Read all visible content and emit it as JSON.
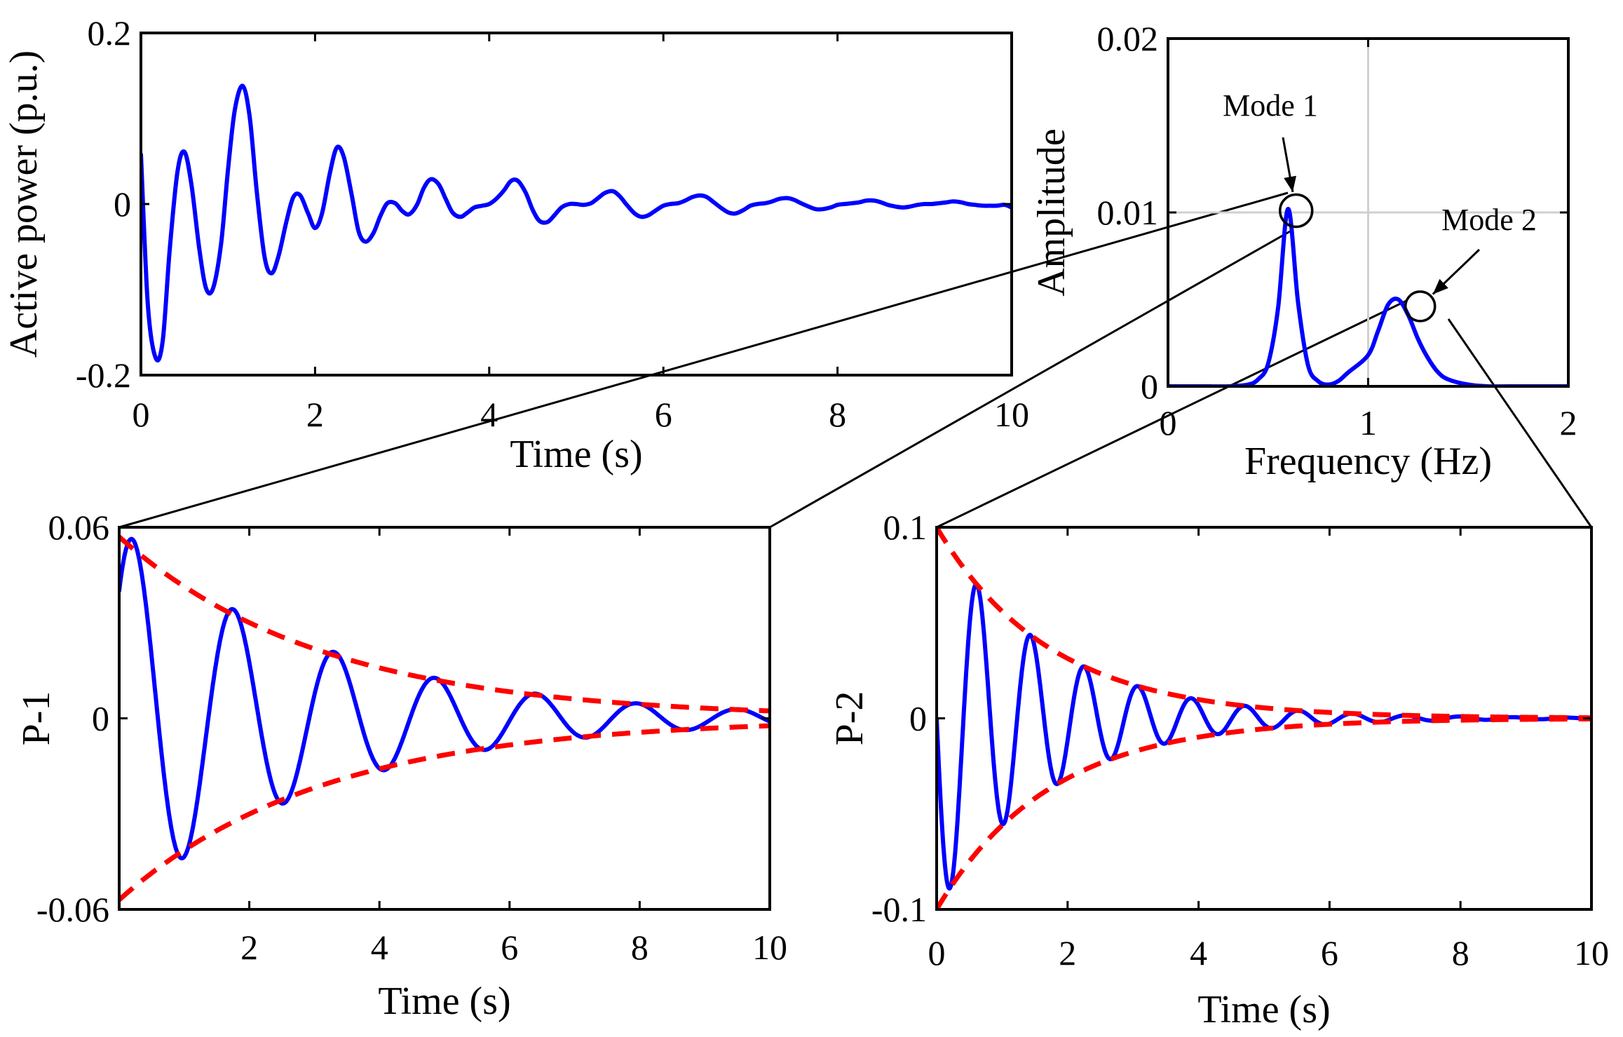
{
  "chart_data": [
    {
      "id": "main",
      "type": "line",
      "title": "",
      "xlabel": "Time (s)",
      "ylabel": "Active power (p.u.)",
      "xlim": [
        0,
        10
      ],
      "ylim": [
        -0.2,
        0.2
      ],
      "xticks": [
        0,
        2,
        4,
        6,
        8,
        10
      ],
      "xtick_labels": [
        "0",
        "2",
        "4",
        "6",
        "8",
        "10"
      ],
      "yticks": [
        -0.2,
        0,
        0.2
      ],
      "ytick_labels": [
        "-0.2",
        "0",
        "0.2"
      ],
      "grid": false,
      "series": [
        {
          "name": "Active power",
          "color": "#0000ff",
          "style": "solid",
          "x": [
            0,
            0.08,
            0.17,
            0.25,
            0.33,
            0.42,
            0.5,
            0.58,
            0.67,
            0.75,
            0.83,
            0.92,
            1.0,
            1.08,
            1.17,
            1.25,
            1.33,
            1.42,
            1.5,
            1.58,
            1.67,
            1.75,
            1.83,
            1.92,
            2.0,
            2.08,
            2.17,
            2.25,
            2.33,
            2.42,
            2.5,
            2.58,
            2.67,
            2.75,
            2.83,
            2.92,
            3.0,
            3.08,
            3.17,
            3.25,
            3.33,
            3.42,
            3.5,
            3.58,
            3.67,
            3.75,
            3.83,
            3.92,
            4.0,
            4.08,
            4.17,
            4.25,
            4.33,
            4.42,
            4.5,
            4.58,
            4.67,
            4.75,
            4.83,
            4.92,
            5.0,
            5.08,
            5.17,
            5.25,
            5.33,
            5.42,
            5.5,
            5.58,
            5.67,
            5.75,
            5.83,
            5.92,
            6.0,
            6.08,
            6.17,
            6.25,
            6.33,
            6.42,
            6.5,
            6.58,
            6.67,
            6.75,
            6.83,
            6.92,
            7.0,
            7.08,
            7.17,
            7.25,
            7.33,
            7.42,
            7.5,
            7.58,
            7.67,
            7.75,
            7.83,
            7.92,
            8.0,
            8.08,
            8.17,
            8.25,
            8.33,
            8.42,
            8.5,
            8.58,
            8.67,
            8.75,
            8.83,
            8.92,
            9.0,
            9.08,
            9.17,
            9.25,
            9.33,
            9.42,
            9.5,
            9.58,
            9.67,
            9.75,
            9.83,
            9.92,
            10.0
          ],
          "y": [
            0.058,
            -0.118,
            -0.18,
            -0.16,
            -0.054,
            0.038,
            0.061,
            0.023,
            -0.052,
            -0.099,
            -0.098,
            -0.047,
            0.04,
            0.111,
            0.138,
            0.101,
            0.015,
            -0.062,
            -0.081,
            -0.061,
            -0.021,
            0.008,
            0.01,
            -0.011,
            -0.028,
            -0.011,
            0.036,
            0.066,
            0.055,
            0.011,
            -0.032,
            -0.044,
            -0.034,
            -0.014,
            0.001,
            0.001,
            -0.008,
            -0.012,
            -0.001,
            0.019,
            0.029,
            0.023,
            0.006,
            -0.01,
            -0.015,
            -0.01,
            -0.004,
            -0.002,
            0.0,
            0.006,
            0.016,
            0.027,
            0.027,
            0.013,
            -0.007,
            -0.02,
            -0.021,
            -0.013,
            -0.004,
            0.0,
            0.0,
            -0.001,
            0.001,
            0.007,
            0.013,
            0.015,
            0.009,
            -0.001,
            -0.011,
            -0.015,
            -0.013,
            -0.007,
            -0.002,
            0.0,
            0.001,
            0.004,
            0.008,
            0.01,
            0.008,
            0.002,
            -0.005,
            -0.01,
            -0.011,
            -0.007,
            -0.002,
            0.0,
            0.001,
            0.003,
            0.006,
            0.007,
            0.005,
            0.001,
            -0.003,
            -0.006,
            -0.006,
            -0.004,
            -0.001,
            0.0,
            0.001,
            0.002,
            0.004,
            0.004,
            0.002,
            -0.001,
            -0.003,
            -0.004,
            -0.003,
            -0.001,
            0.0,
            0.0,
            0.001,
            0.002,
            0.003,
            0.002,
            0.0,
            -0.001,
            -0.002,
            -0.002,
            -0.002,
            -0.001,
            -0.004
          ]
        }
      ]
    },
    {
      "id": "spectrum",
      "type": "line",
      "title": "",
      "xlabel": "Frequency (Hz)",
      "ylabel": "Amplitude",
      "xlim": [
        0,
        2
      ],
      "ylim": [
        0,
        0.02
      ],
      "xticks": [
        0,
        1,
        2
      ],
      "xtick_labels": [
        "0",
        "1",
        "2"
      ],
      "yticks": [
        0,
        0.01,
        0.02
      ],
      "ytick_labels": [
        "0",
        "0.01",
        "0.02"
      ],
      "grid": true,
      "series": [
        {
          "name": "Amplitude spectrum",
          "color": "#0000ff",
          "style": "solid",
          "x": [
            0,
            0.1,
            0.2,
            0.3,
            0.4,
            0.45,
            0.5,
            0.55,
            0.6,
            0.65,
            0.7,
            0.75,
            0.8,
            0.85,
            0.9,
            1.0,
            1.05,
            1.1,
            1.15,
            1.2,
            1.25,
            1.3,
            1.35,
            1.4,
            1.5,
            1.6,
            1.7,
            1.8,
            1.9,
            2.0
          ],
          "y": [
            0,
            0,
            0,
            0,
            0.0001,
            0.0004,
            0.0013,
            0.0045,
            0.0102,
            0.0048,
            0.0012,
            0.0003,
            0.0001,
            0.0003,
            0.0008,
            0.0018,
            0.0032,
            0.0047,
            0.005,
            0.0041,
            0.0027,
            0.0016,
            0.0008,
            0.0004,
            0.0001,
            0,
            0,
            0,
            0,
            0
          ]
        }
      ],
      "annotations": [
        {
          "text": "Mode 1",
          "x": 0.64,
          "y": 0.0101
        },
        {
          "text": "Mode 2",
          "x": 1.26,
          "y": 0.0046
        }
      ]
    },
    {
      "id": "p1",
      "type": "line",
      "title": "",
      "xlabel": "Time (s)",
      "ylabel": "P-1",
      "xlim": [
        0,
        10
      ],
      "ylim": [
        -0.06,
        0.06
      ],
      "xticks": [
        2,
        4,
        6,
        8,
        10
      ],
      "xtick_labels": [
        "2",
        "4",
        "6",
        "8",
        "10"
      ],
      "yticks": [
        -0.06,
        0,
        0.06
      ],
      "ytick_labels": [
        "-0.06",
        "0",
        "0.06"
      ],
      "grid": false,
      "series": [
        {
          "name": "P-1",
          "color": "#0000ff",
          "style": "solid",
          "model": "damped-cosine",
          "amplitude": 0.06,
          "decay": 0.32,
          "frequency_hz": 0.645,
          "phase_rad": -0.84
        },
        {
          "name": "upper envelope",
          "color": "#ff0000",
          "style": "dashed",
          "model": "exponential",
          "amplitude": 0.057,
          "decay": 0.32
        },
        {
          "name": "lower envelope",
          "color": "#ff0000",
          "style": "dashed",
          "model": "exponential",
          "amplitude": -0.057,
          "decay": 0.32
        }
      ]
    },
    {
      "id": "p2",
      "type": "line",
      "title": "",
      "xlabel": "Time (s)",
      "ylabel": "P-2",
      "xlim": [
        0,
        10
      ],
      "ylim": [
        -0.1,
        0.1
      ],
      "xticks": [
        0,
        2,
        4,
        6,
        8,
        10
      ],
      "xtick_labels": [
        "0",
        "2",
        "4",
        "6",
        "8",
        "10"
      ],
      "yticks": [
        -0.1,
        0,
        0.1
      ],
      "ytick_labels": [
        "-0.1",
        "0",
        "0.1"
      ],
      "grid": false,
      "series": [
        {
          "name": "P-2",
          "color": "#0000ff",
          "style": "solid",
          "model": "damped-sine",
          "amplitude": -0.1,
          "decay": 0.58,
          "frequency_hz": 1.22,
          "phase_rad": 0
        },
        {
          "name": "upper envelope",
          "color": "#ff0000",
          "style": "dashed",
          "model": "exponential",
          "amplitude": 0.1,
          "decay": 0.58
        },
        {
          "name": "lower envelope",
          "color": "#ff0000",
          "style": "dashed",
          "model": "exponential",
          "amplitude": -0.1,
          "decay": 0.58
        }
      ]
    }
  ]
}
